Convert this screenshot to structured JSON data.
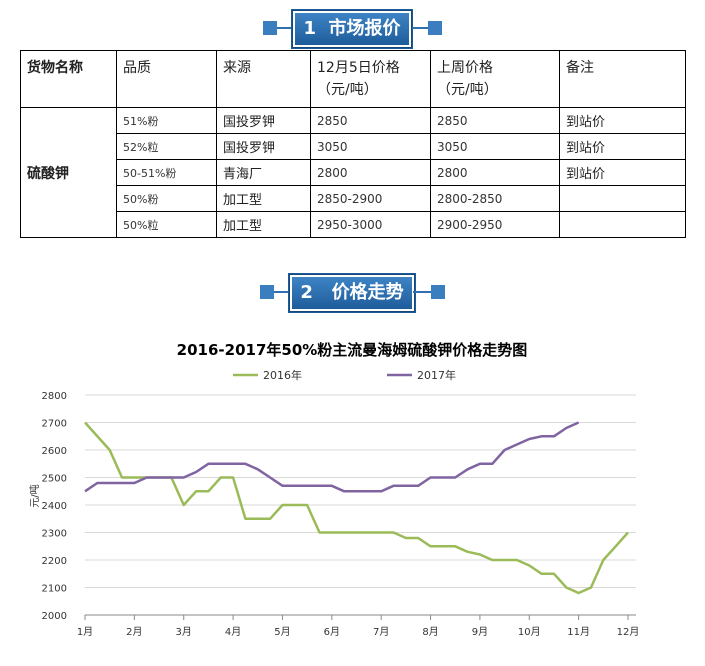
{
  "section1": {
    "number": "1",
    "title": "市场报价"
  },
  "section2": {
    "number": "2",
    "title": "价格走势"
  },
  "table": {
    "headers": {
      "name": "货物名称",
      "quality": "品质",
      "source": "来源",
      "price_dec5": "12月5日价格",
      "price_dec5_unit": "（元/吨）",
      "last_week": "上周价格",
      "last_week_unit": "（元/吨）",
      "note": "备注"
    },
    "product": "硫酸钾",
    "rows": [
      {
        "quality": "51%粉",
        "source": "国投罗钾",
        "price": "2850",
        "last": "2850",
        "note": "到站价"
      },
      {
        "quality": "52%粒",
        "source": "国投罗钾",
        "price": "3050",
        "last": "3050",
        "note": "到站价"
      },
      {
        "quality": "50-51%粉",
        "source": "青海厂",
        "price": "2800",
        "last": "2800",
        "note": "到站价"
      },
      {
        "quality": "50%粉",
        "source": "加工型",
        "price": "2850-2900",
        "last": "2800-2850",
        "note": ""
      },
      {
        "quality": "50%粒",
        "source": "加工型",
        "price": "2950-3000",
        "last": "2900-2950",
        "note": ""
      }
    ]
  },
  "chart_data": {
    "type": "line",
    "title": "2016-2017年50%粉主流曼海姆硫酸钾价格走势图",
    "ylabel": "元/吨",
    "xlabel": "",
    "ylim": [
      2000,
      2800
    ],
    "yticks": [
      2000,
      2100,
      2200,
      2300,
      2400,
      2500,
      2600,
      2700,
      2800
    ],
    "xlim": [
      1,
      12
    ],
    "xticks": [
      "1月",
      "2月",
      "3月",
      "4月",
      "5月",
      "6月",
      "7月",
      "8月",
      "9月",
      "10月",
      "11月",
      "12月"
    ],
    "grid": "horizontal",
    "legend": "top",
    "colors": {
      "s2016": "#9bbb59",
      "s2017": "#8064a2"
    },
    "series": [
      {
        "name": "2016年",
        "x": [
          1,
          1.5,
          1.75,
          2,
          2.25,
          2.5,
          2.75,
          3,
          3.25,
          3.5,
          3.75,
          4,
          4.25,
          4.5,
          4.75,
          5,
          5.25,
          5.5,
          5.75,
          6,
          6.25,
          6.5,
          6.75,
          7,
          7.25,
          7.5,
          7.75,
          8,
          8.25,
          8.5,
          8.75,
          9,
          9.25,
          9.5,
          9.75,
          10,
          10.25,
          10.5,
          10.75,
          11,
          11.25,
          11.5,
          11.75,
          12
        ],
        "values": [
          2700,
          2600,
          2500,
          2500,
          2500,
          2500,
          2500,
          2400,
          2450,
          2450,
          2500,
          2500,
          2350,
          2350,
          2350,
          2400,
          2400,
          2400,
          2300,
          2300,
          2300,
          2300,
          2300,
          2300,
          2300,
          2280,
          2280,
          2250,
          2250,
          2250,
          2230,
          2220,
          2200,
          2200,
          2200,
          2180,
          2150,
          2150,
          2100,
          2080,
          2100,
          2200,
          2250,
          2300
        ]
      },
      {
        "name": "2017年",
        "x": [
          1,
          1.25,
          1.5,
          1.75,
          2,
          2.25,
          2.5,
          2.75,
          3,
          3.25,
          3.5,
          3.75,
          4,
          4.25,
          4.5,
          4.75,
          5,
          5.25,
          5.5,
          5.75,
          6,
          6.25,
          6.5,
          6.75,
          7,
          7.25,
          7.5,
          7.75,
          8,
          8.25,
          8.5,
          8.75,
          9,
          9.25,
          9.5,
          9.75,
          10,
          10.25,
          10.5,
          10.75,
          11
        ],
        "values": [
          2450,
          2480,
          2480,
          2480,
          2480,
          2500,
          2500,
          2500,
          2500,
          2520,
          2550,
          2550,
          2550,
          2550,
          2530,
          2500,
          2470,
          2470,
          2470,
          2470,
          2470,
          2450,
          2450,
          2450,
          2450,
          2470,
          2470,
          2470,
          2500,
          2500,
          2500,
          2530,
          2550,
          2550,
          2600,
          2620,
          2640,
          2650,
          2650,
          2680,
          2700
        ]
      }
    ]
  }
}
